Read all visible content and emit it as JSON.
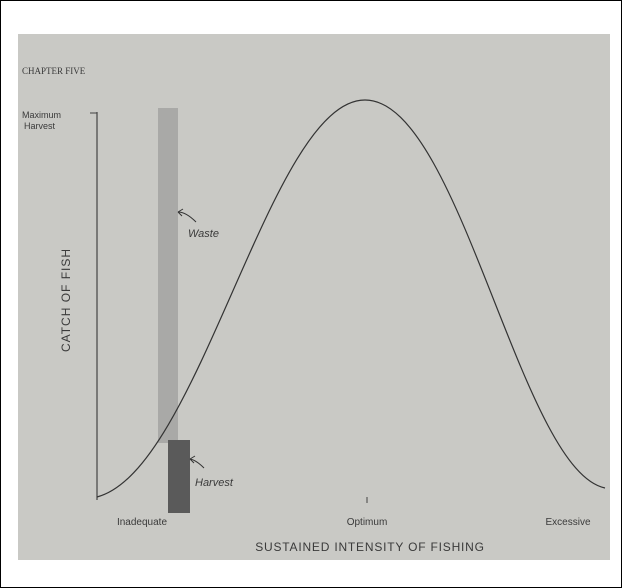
{
  "header": {
    "running_head": "CHAPTER FIVE"
  },
  "axes": {
    "y_label": "CATCH OF FISH",
    "y_tick": [
      "Maximum",
      "Harvest"
    ],
    "x_label": "SUSTAINED INTENSITY OF FISHING",
    "x_ticks": [
      "Inadequate",
      "Optimum",
      "Excessive"
    ]
  },
  "annotations": {
    "waste": "Waste",
    "harvest": "Harvest"
  }
}
